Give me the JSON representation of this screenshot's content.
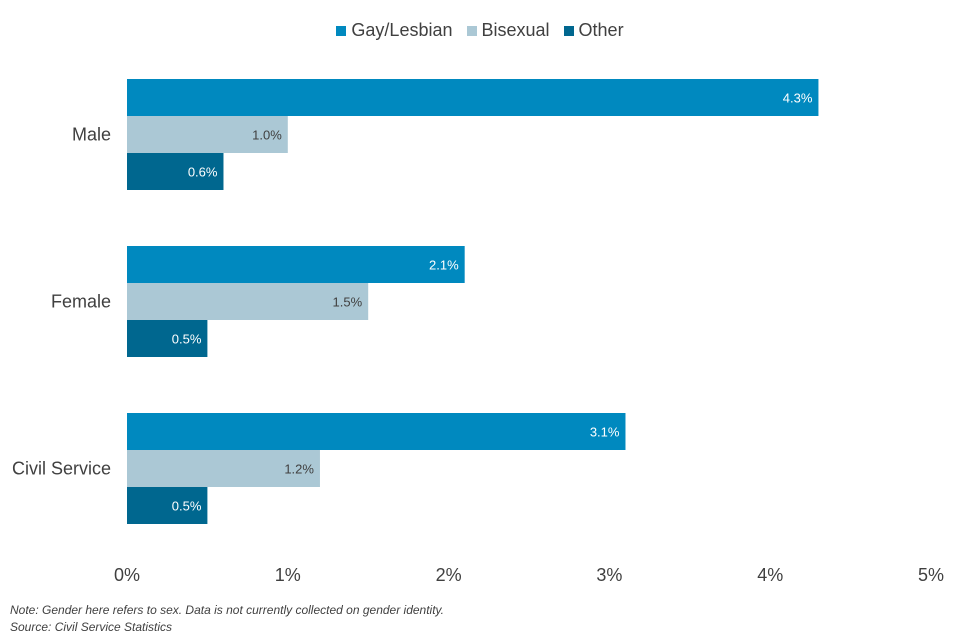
{
  "chart_data": {
    "type": "bar",
    "orientation": "horizontal",
    "categories": [
      "Male",
      "Female",
      "Civil Service"
    ],
    "series": [
      {
        "name": "Gay/Lesbian",
        "values": [
          4.3,
          2.1,
          3.1
        ],
        "labels": [
          "4.3%",
          "2.1%",
          "3.1%"
        ],
        "color": "#0089bf",
        "label_color": "#ffffff"
      },
      {
        "name": "Bisexual",
        "values": [
          1.0,
          1.5,
          1.2
        ],
        "labels": [
          "1.0%",
          "1.5%",
          "1.2%"
        ],
        "color": "#abc8d5",
        "label_color": "#404040"
      },
      {
        "name": "Other",
        "values": [
          0.6,
          0.5,
          0.5
        ],
        "labels": [
          "0.6%",
          "0.5%",
          "0.5%"
        ],
        "color": "#00678f",
        "label_color": "#ffffff"
      }
    ],
    "xlim": [
      0,
      5
    ],
    "x_ticks": [
      0,
      1,
      2,
      3,
      4,
      5
    ],
    "x_tick_labels": [
      "0%",
      "1%",
      "2%",
      "3%",
      "4%",
      "5%"
    ],
    "grid": false,
    "legend_position": "top-center"
  },
  "notes": {
    "note": "Note: Gender here refers to sex. Data is not currently collected on gender identity.",
    "source": "Source: Civil Service Statistics"
  }
}
